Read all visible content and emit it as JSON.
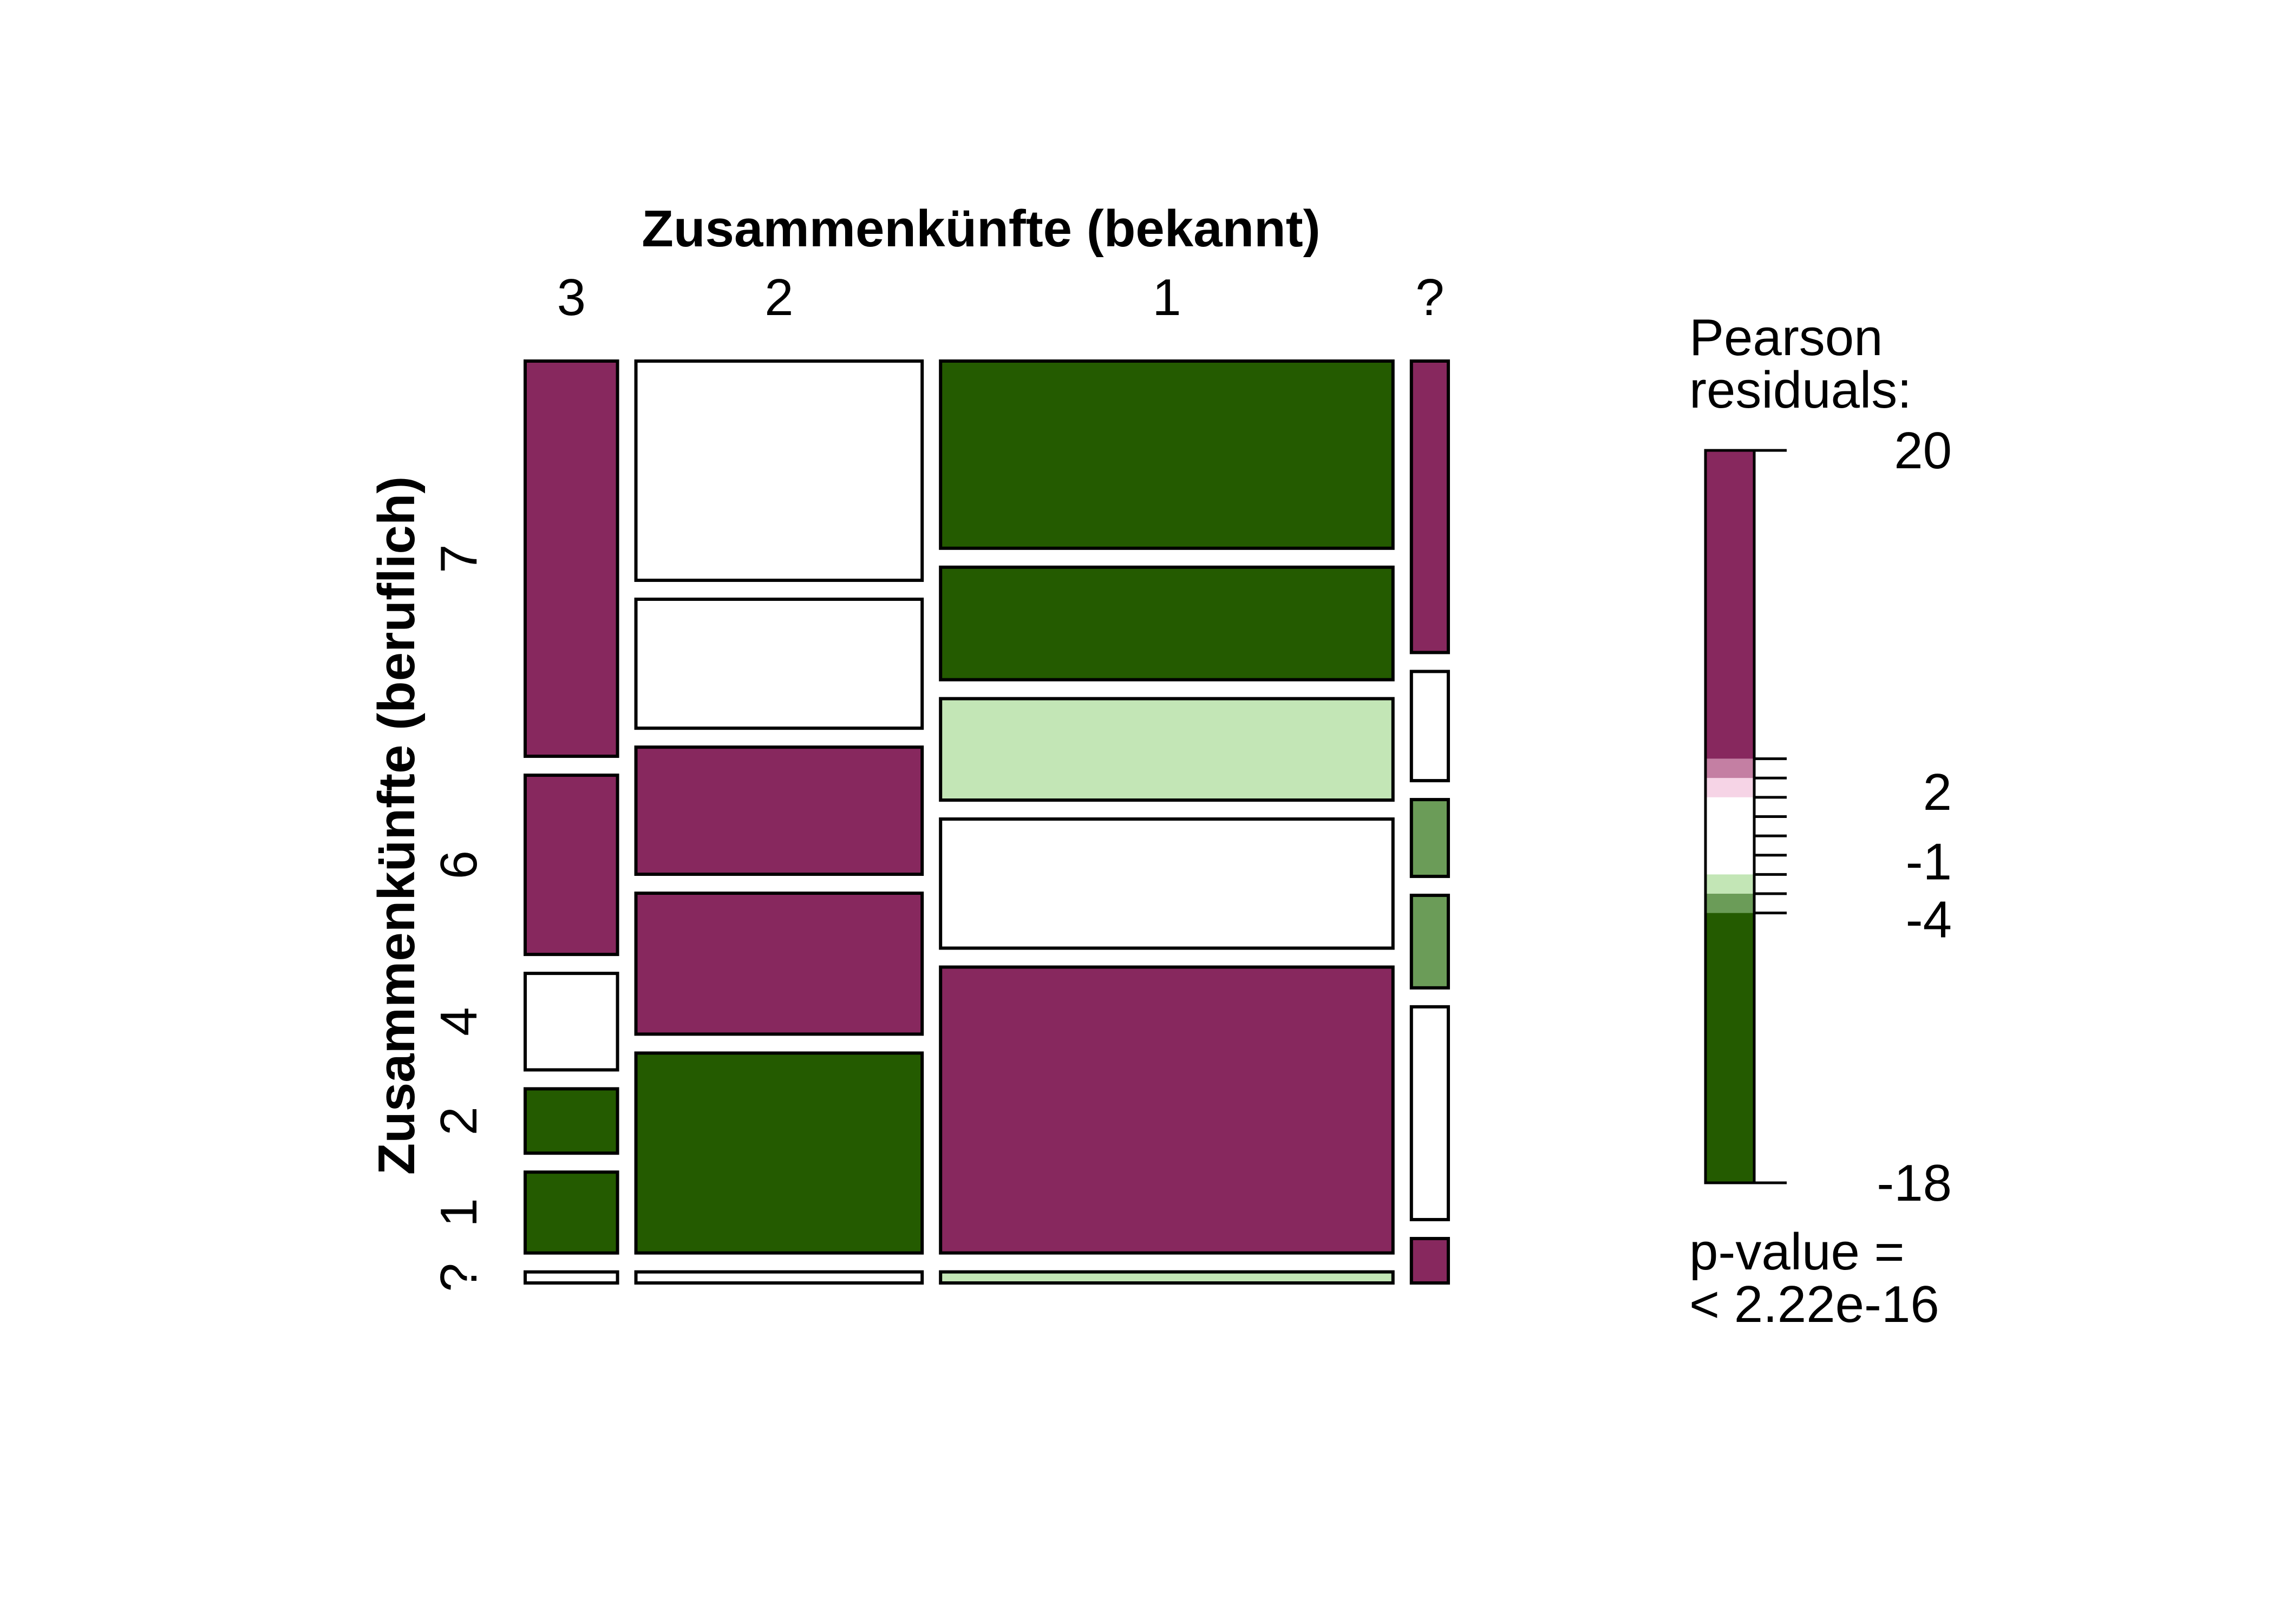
{
  "chart_data": {
    "type": "mosaic",
    "xlabel": "Zusammenkünfte (bekannt)",
    "ylabel": "Zusammenkünfte (beruflich)",
    "x_categories": [
      "3",
      "2",
      "1",
      "?"
    ],
    "y_categories": [
      "7",
      "6",
      "4",
      "2",
      "1",
      "?"
    ],
    "column_proportions": [
      0.1,
      0.31,
      0.49,
      0.04
    ],
    "cells": [
      {
        "x": "3",
        "y": "7",
        "proportion": 0.43,
        "residual_class": "strong-positive"
      },
      {
        "x": "3",
        "y": "6",
        "proportion": 0.195,
        "residual_class": "strong-positive"
      },
      {
        "x": "3",
        "y": "4",
        "proportion": 0.105,
        "residual_class": "neutral"
      },
      {
        "x": "3",
        "y": "2",
        "proportion": 0.07,
        "residual_class": "strong-negative"
      },
      {
        "x": "3",
        "y": "1",
        "proportion": 0.088,
        "residual_class": "strong-negative"
      },
      {
        "x": "3",
        "y": "?",
        "proportion": 0.012,
        "residual_class": "neutral"
      },
      {
        "x": "2",
        "y": "7",
        "proportion": 0.238,
        "residual_class": "neutral"
      },
      {
        "x": "2",
        "y": "6",
        "proportion": 0.14,
        "residual_class": "neutral"
      },
      {
        "x": "2",
        "y": "4",
        "proportion": 0.138,
        "residual_class": "strong-positive"
      },
      {
        "x": "2",
        "y": "2",
        "proportion": 0.153,
        "residual_class": "strong-positive"
      },
      {
        "x": "2",
        "y": "1",
        "proportion": 0.217,
        "residual_class": "strong-negative"
      },
      {
        "x": "2",
        "y": "?",
        "proportion": 0.012,
        "residual_class": "neutral"
      },
      {
        "x": "1",
        "y": "7",
        "proportion": 0.203,
        "residual_class": "strong-negative"
      },
      {
        "x": "1",
        "y": "6",
        "proportion": 0.122,
        "residual_class": "strong-negative"
      },
      {
        "x": "1",
        "y": "4",
        "proportion": 0.11,
        "residual_class": "light-negative"
      },
      {
        "x": "1",
        "y": "2",
        "proportion": 0.14,
        "residual_class": "neutral"
      },
      {
        "x": "1",
        "y": "1",
        "proportion": 0.31,
        "residual_class": "strong-positive"
      },
      {
        "x": "1",
        "y": "?",
        "proportion": 0.012,
        "residual_class": "light-negative"
      },
      {
        "x": "?",
        "y": "7",
        "proportion": 0.315,
        "residual_class": "strong-positive"
      },
      {
        "x": "?",
        "y": "6",
        "proportion": 0.118,
        "residual_class": "neutral"
      },
      {
        "x": "?",
        "y": "4",
        "proportion": 0.083,
        "residual_class": "medium-negative"
      },
      {
        "x": "?",
        "y": "2",
        "proportion": 0.1,
        "residual_class": "medium-negative"
      },
      {
        "x": "?",
        "y": "1",
        "proportion": 0.23,
        "residual_class": "neutral"
      },
      {
        "x": "?",
        "y": "?",
        "proportion": 0.048,
        "residual_class": "strong-positive"
      }
    ],
    "legend": {
      "title_line1": "Pearson",
      "title_line2": "residuals:",
      "tick_labels": [
        "20",
        "2",
        "-1",
        "-4",
        "-18"
      ],
      "pvalue_line1": "p-value =",
      "pvalue_line2": "< 2.22e-16",
      "range": [
        -18,
        20
      ],
      "bands": [
        {
          "from": 4,
          "to": 20,
          "class": "strong-positive"
        },
        {
          "from": 3,
          "to": 4,
          "class": "medium-positive"
        },
        {
          "from": 2,
          "to": 3,
          "class": "light-positive"
        },
        {
          "from": -2,
          "to": 2,
          "class": "neutral"
        },
        {
          "from": -3,
          "to": -2,
          "class": "light-negative"
        },
        {
          "from": -4,
          "to": -3,
          "class": "medium-negative"
        },
        {
          "from": -18,
          "to": -4,
          "class": "strong-negative"
        }
      ],
      "minor_ticks": [
        4,
        3,
        2,
        1,
        0,
        -1,
        -2,
        -3,
        -4
      ]
    },
    "colors": {
      "strong-positive": "#87285e",
      "medium-positive": "#c47fa3",
      "light-positive": "#f6d4e6",
      "neutral": "#ffffff",
      "light-negative": "#c3e6b6",
      "medium-negative": "#6b9c58",
      "strong-negative": "#245b00"
    }
  }
}
